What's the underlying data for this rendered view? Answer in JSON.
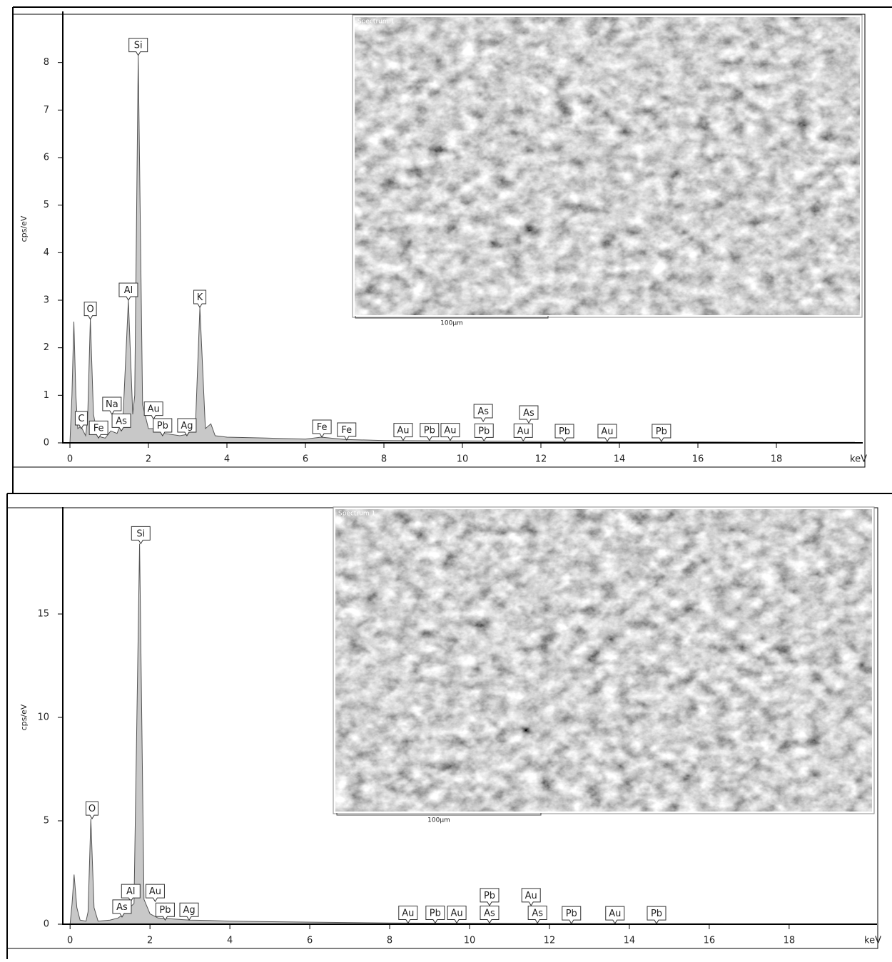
{
  "chart_data": [
    {
      "type": "area",
      "color": "#c8c8c8",
      "y_label": "cps/eV",
      "x_label": "keV",
      "x": [
        0,
        0.05,
        0.1,
        0.15,
        0.2,
        0.28,
        0.4,
        0.45,
        0.52,
        0.6,
        0.7,
        0.8,
        0.9,
        1.04,
        1.2,
        1.35,
        1.49,
        1.6,
        1.65,
        1.74,
        1.85,
        2.0,
        2.15,
        2.4,
        2.8,
        3.0,
        3.2,
        3.31,
        3.45,
        3.59,
        3.7,
        4,
        5,
        6,
        6.4,
        7,
        8,
        10,
        12,
        14,
        16,
        18,
        20
      ],
      "values": [
        0,
        1.0,
        2.55,
        1.0,
        0.3,
        0.35,
        0.15,
        0.5,
        2.6,
        0.6,
        0.15,
        0.12,
        0.1,
        0.25,
        0.2,
        0.5,
        3.0,
        0.6,
        1.0,
        8.15,
        0.8,
        0.3,
        0.3,
        0.2,
        0.15,
        0.18,
        0.4,
        2.85,
        0.3,
        0.4,
        0.15,
        0.12,
        0.1,
        0.08,
        0.12,
        0.07,
        0.05,
        0.04,
        0.03,
        0.02,
        0.02,
        0.01,
        0.01
      ],
      "xlim": [
        -0.2,
        20.2
      ],
      "ylim": [
        0,
        9
      ],
      "xticks": [
        0,
        2,
        4,
        6,
        8,
        10,
        12,
        14,
        16,
        18
      ],
      "yticks": [
        0,
        1,
        2,
        3,
        4,
        5,
        6,
        7,
        8
      ],
      "annotations": [
        {
          "text": "Si",
          "x": 1.74,
          "y": 8.15
        },
        {
          "text": "O",
          "x": 0.52,
          "y": 2.6
        },
        {
          "text": "Al",
          "x": 1.49,
          "y": 3.0
        },
        {
          "text": "K",
          "x": 3.31,
          "y": 2.85
        },
        {
          "text": "C",
          "x": 0.29,
          "y": 0.3
        },
        {
          "text": "Na",
          "x": 1.07,
          "y": 0.6
        },
        {
          "text": "Fe",
          "x": 0.73,
          "y": 0.1
        },
        {
          "text": "As",
          "x": 1.31,
          "y": 0.25
        },
        {
          "text": "Au",
          "x": 2.13,
          "y": 0.5
        },
        {
          "text": "Pb",
          "x": 2.36,
          "y": 0.15
        },
        {
          "text": "Ag",
          "x": 2.98,
          "y": 0.15
        },
        {
          "text": "Fe",
          "x": 6.42,
          "y": 0.12
        },
        {
          "text": "Fe",
          "x": 7.05,
          "y": 0.06
        },
        {
          "text": "Au",
          "x": 8.49,
          "y": 0.05
        },
        {
          "text": "Pb",
          "x": 9.16,
          "y": 0.05
        },
        {
          "text": "Au",
          "x": 9.69,
          "y": 0.05
        },
        {
          "text": "As",
          "x": 10.53,
          "y": 0.45
        },
        {
          "text": "Pb",
          "x": 10.55,
          "y": 0.04
        },
        {
          "text": "Au",
          "x": 11.55,
          "y": 0.04
        },
        {
          "text": "As",
          "x": 11.69,
          "y": 0.42
        },
        {
          "text": "Pb",
          "x": 12.6,
          "y": 0.03
        },
        {
          "text": "Au",
          "x": 13.69,
          "y": 0.03
        },
        {
          "text": "Pb",
          "x": 15.07,
          "y": 0.03
        }
      ],
      "inset": {
        "caption": "Spectrum 1",
        "scale_bar": "100µm"
      }
    },
    {
      "type": "area",
      "color": "#c8c8c8",
      "y_label": "cps/eV",
      "x_label": "keV",
      "x": [
        0,
        0.05,
        0.1,
        0.17,
        0.25,
        0.4,
        0.45,
        0.52,
        0.6,
        0.7,
        1.0,
        1.2,
        1.35,
        1.49,
        1.6,
        1.74,
        1.85,
        2.0,
        2.2,
        2.6,
        3.0,
        3.5,
        4,
        5,
        6,
        8,
        10,
        12,
        14,
        16,
        18,
        20
      ],
      "values": [
        0,
        1.0,
        2.4,
        0.8,
        0.2,
        0.15,
        0.6,
        5.1,
        0.8,
        0.15,
        0.2,
        0.3,
        0.5,
        0.8,
        1.0,
        18.4,
        1.2,
        0.5,
        0.3,
        0.25,
        0.2,
        0.18,
        0.15,
        0.12,
        0.1,
        0.06,
        0.04,
        0.03,
        0.02,
        0.02,
        0.01,
        0.01
      ],
      "xlim": [
        -0.2,
        20.2
      ],
      "ylim": [
        0,
        20
      ],
      "xticks": [
        0,
        2,
        4,
        6,
        8,
        10,
        12,
        14,
        16,
        18
      ],
      "yticks": [
        0,
        5,
        10,
        15
      ],
      "annotations": [
        {
          "text": "Si",
          "x": 1.77,
          "y": 18.4
        },
        {
          "text": "O",
          "x": 0.55,
          "y": 5.1
        },
        {
          "text": "Al",
          "x": 1.52,
          "y": 1.1
        },
        {
          "text": "As",
          "x": 1.3,
          "y": 0.35
        },
        {
          "text": "Au",
          "x": 2.13,
          "y": 1.1
        },
        {
          "text": "Pb",
          "x": 2.38,
          "y": 0.2
        },
        {
          "text": "Ag",
          "x": 2.98,
          "y": 0.2
        },
        {
          "text": "Au",
          "x": 8.46,
          "y": 0.05
        },
        {
          "text": "Pb",
          "x": 9.14,
          "y": 0.05
        },
        {
          "text": "Au",
          "x": 9.68,
          "y": 0.05
        },
        {
          "text": "Pb",
          "x": 10.5,
          "y": 0.9
        },
        {
          "text": "As",
          "x": 10.5,
          "y": 0.05
        },
        {
          "text": "Au",
          "x": 11.54,
          "y": 0.9
        },
        {
          "text": "As",
          "x": 11.7,
          "y": 0.05
        },
        {
          "text": "Pb",
          "x": 12.55,
          "y": 0.03
        },
        {
          "text": "Au",
          "x": 13.64,
          "y": 0.03
        },
        {
          "text": "Pb",
          "x": 14.68,
          "y": 0.03
        }
      ],
      "inset": {
        "caption": "Spectrum 1",
        "scale_bar": "100µm"
      }
    }
  ]
}
